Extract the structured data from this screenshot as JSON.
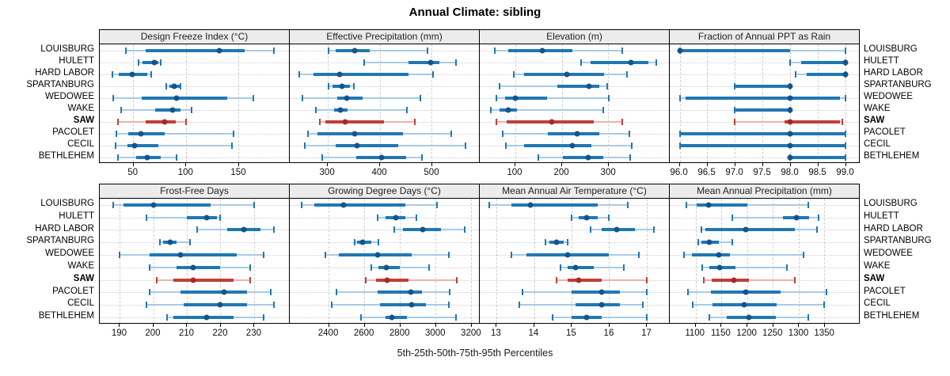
{
  "title": "Annual Climate: sibling",
  "caption": "5th-25th-50th-75th-95th Percentiles",
  "sites": [
    "LOUISBURG",
    "HULETT",
    "HARD LABOR",
    "SPARTANBURG",
    "WEDOWEE",
    "WAKE",
    "SAW",
    "PACOLET",
    "CECIL",
    "BETHLEHEM"
  ],
  "highlight_site": "SAW",
  "colors": {
    "blue_whisker": "#A9CBE4",
    "blue_bar": "#2077B4",
    "blue_dot": "#14548C",
    "red_whisker": "#E9B3AE",
    "red_bar": "#C13E38",
    "red_dot": "#A32C24",
    "strip_bg": "#ECECEC",
    "grid": "#CFCFCF"
  },
  "chart_data": {
    "type": "interval-dotplot",
    "note": "rows give [5th,25th,50th,75th,95th] percentiles per site, site order matches sites[]",
    "panels": [
      {
        "title": "Design Freeze Index (°C)",
        "xlim": [
          18,
          198
        ],
        "tick_values": [
          50,
          100,
          150
        ],
        "tick_labels": [
          "50",
          "100",
          "150"
        ],
        "rows": [
          [
            43,
            62,
            132,
            156,
            184
          ],
          [
            55,
            59,
            70,
            74,
            76
          ],
          [
            30,
            36,
            49,
            63,
            67
          ],
          [
            81,
            84,
            89,
            94,
            95
          ],
          [
            31,
            58,
            91,
            139,
            164
          ],
          [
            38,
            71,
            87,
            95,
            105
          ],
          [
            35,
            62,
            80,
            90,
            100
          ],
          [
            34,
            45,
            57,
            80,
            145
          ],
          [
            33,
            44,
            51,
            74,
            144
          ],
          [
            35,
            53,
            63,
            76,
            91
          ]
        ]
      },
      {
        "title": "Effective Precipitation (mm)",
        "xlim": [
          227,
          591
        ],
        "tick_values": [
          300,
          400,
          500
        ],
        "tick_labels": [
          "300",
          "400",
          "500"
        ],
        "rows": [
          [
            301,
            315,
            352,
            381,
            492
          ],
          [
            370,
            455,
            498,
            515,
            547
          ],
          [
            245,
            272,
            323,
            456,
            503
          ],
          [
            301,
            310,
            328,
            343,
            350
          ],
          [
            252,
            318,
            337,
            367,
            478
          ],
          [
            277,
            313,
            324,
            338,
            452
          ],
          [
            285,
            295,
            333,
            409,
            468
          ],
          [
            262,
            281,
            352,
            445,
            538
          ],
          [
            256,
            315,
            357,
            436,
            565
          ],
          [
            289,
            355,
            404,
            451,
            482
          ]
        ]
      },
      {
        "title": "Elevation (m)",
        "xlim": [
          24,
          430
        ],
        "tick_values": [
          100,
          200,
          300
        ],
        "tick_labels": [
          "100",
          "200",
          "300"
        ],
        "rows": [
          [
            57,
            86,
            159,
            223,
            329
          ],
          [
            241,
            262,
            349,
            386,
            402
          ],
          [
            97,
            119,
            211,
            290,
            340
          ],
          [
            67,
            190,
            258,
            281,
            297
          ],
          [
            59,
            78,
            101,
            168,
            301
          ],
          [
            47,
            67,
            85,
            103,
            289
          ],
          [
            60,
            81,
            178,
            268,
            330
          ],
          [
            74,
            170,
            233,
            281,
            345
          ],
          [
            80,
            119,
            223,
            264,
            351
          ],
          [
            150,
            202,
            257,
            289,
            346
          ]
        ]
      },
      {
        "title": "Fraction of Annual PPT as Rain",
        "xlim": [
          95.82,
          99.25
        ],
        "tick_values": [
          96.0,
          96.5,
          97.0,
          97.5,
          98.0,
          98.5,
          99.0
        ],
        "tick_labels": [
          "96.0",
          "96.5",
          "97.0",
          "97.5",
          "98.0",
          "98.5",
          "99.0"
        ],
        "rows": [
          [
            96.0,
            96.0,
            96.0,
            98.0,
            99.0
          ],
          [
            98.0,
            98.2,
            99.0,
            99.0,
            99.0
          ],
          [
            98.1,
            98.3,
            99.0,
            99.0,
            99.0
          ],
          [
            97.0,
            97.0,
            98.0,
            98.0,
            98.0
          ],
          [
            96.0,
            96.1,
            98.0,
            98.9,
            99.0
          ],
          [
            97.0,
            97.0,
            98.0,
            98.0,
            98.0
          ],
          [
            97.0,
            97.9,
            98.0,
            98.9,
            98.95
          ],
          [
            96.0,
            96.0,
            98.0,
            99.0,
            99.0
          ],
          [
            96.0,
            96.0,
            98.0,
            99.0,
            99.0
          ],
          [
            98.0,
            98.0,
            98.0,
            99.0,
            99.0
          ]
        ]
      },
      {
        "title": "Frost-Free Days",
        "xlim": [
          184,
          240.5
        ],
        "tick_values": [
          190,
          200,
          210,
          220,
          230
        ],
        "tick_labels": [
          "190",
          "200",
          "210",
          "220",
          "230"
        ],
        "rows": [
          [
            188,
            191,
            200,
            217,
            230
          ],
          [
            198,
            210,
            216,
            219,
            220
          ],
          [
            213,
            222,
            227,
            232,
            236
          ],
          [
            202,
            203,
            205,
            207,
            211
          ],
          [
            190,
            199,
            208,
            225,
            233
          ],
          [
            199,
            207,
            212,
            220,
            229
          ],
          [
            201,
            206,
            212,
            224,
            229
          ],
          [
            199,
            208,
            221,
            228,
            235
          ],
          [
            198,
            209,
            220,
            228,
            236
          ],
          [
            204,
            206,
            216,
            224,
            233
          ]
        ]
      },
      {
        "title": "Growing Degree Days (°C)",
        "xlim": [
          2180,
          3245
        ],
        "tick_values": [
          2400,
          2600,
          2800,
          3000,
          3200
        ],
        "tick_labels": [
          "2400",
          "2600",
          "2800",
          "3000",
          "3200"
        ],
        "rows": [
          [
            2245,
            2320,
            2485,
            2830,
            3010
          ],
          [
            2675,
            2720,
            2775,
            2830,
            2895
          ],
          [
            2770,
            2815,
            2930,
            3030,
            3165
          ],
          [
            2545,
            2560,
            2590,
            2640,
            2680
          ],
          [
            2380,
            2455,
            2675,
            2865,
            3075
          ],
          [
            2640,
            2680,
            2725,
            2800,
            2965
          ],
          [
            2610,
            2665,
            2730,
            2850,
            3120
          ],
          [
            2445,
            2675,
            2860,
            2925,
            3080
          ],
          [
            2415,
            2690,
            2865,
            2945,
            3075
          ],
          [
            2580,
            2720,
            2757,
            2840,
            3115
          ]
        ]
      },
      {
        "title": "Mean Annual Air Temperature (°C)",
        "xlim": [
          12.55,
          17.6
        ],
        "tick_values": [
          13,
          14,
          15,
          16,
          17
        ],
        "tick_labels": [
          "13",
          "14",
          "15",
          "16",
          "17"
        ],
        "rows": [
          [
            12.8,
            13.4,
            13.9,
            15.7,
            16.5
          ],
          [
            15.0,
            15.2,
            15.4,
            15.7,
            16.0
          ],
          [
            15.5,
            15.8,
            16.2,
            16.7,
            17.2
          ],
          [
            14.3,
            14.4,
            14.6,
            14.8,
            14.9
          ],
          [
            13.4,
            13.8,
            14.9,
            16.0,
            16.8
          ],
          [
            14.7,
            14.9,
            15.1,
            15.6,
            16.4
          ],
          [
            14.6,
            14.9,
            15.2,
            15.8,
            17.0
          ],
          [
            13.7,
            15.0,
            15.8,
            16.3,
            17.0
          ],
          [
            13.6,
            15.1,
            15.8,
            16.3,
            16.9
          ],
          [
            14.5,
            15.0,
            15.4,
            15.8,
            17.0
          ]
        ]
      },
      {
        "title": "Mean Annual Precipitation (mm)",
        "xlim": [
          1050,
          1417
        ],
        "tick_values": [
          1100,
          1150,
          1200,
          1250,
          1300,
          1350
        ],
        "tick_labels": [
          "1100",
          "1150",
          "1200",
          "1250",
          "1300",
          "1350"
        ],
        "rows": [
          [
            1082,
            1102,
            1126,
            1200,
            1318
          ],
          [
            1172,
            1269,
            1296,
            1320,
            1339
          ],
          [
            1111,
            1119,
            1198,
            1292,
            1336
          ],
          [
            1105,
            1111,
            1127,
            1145,
            1171
          ],
          [
            1077,
            1093,
            1145,
            1166,
            1309
          ],
          [
            1113,
            1127,
            1147,
            1178,
            1278
          ],
          [
            1116,
            1132,
            1175,
            1204,
            1293
          ],
          [
            1085,
            1130,
            1198,
            1265,
            1354
          ],
          [
            1095,
            1133,
            1194,
            1258,
            1349
          ],
          [
            1127,
            1161,
            1204,
            1256,
            1319
          ]
        ]
      }
    ]
  }
}
